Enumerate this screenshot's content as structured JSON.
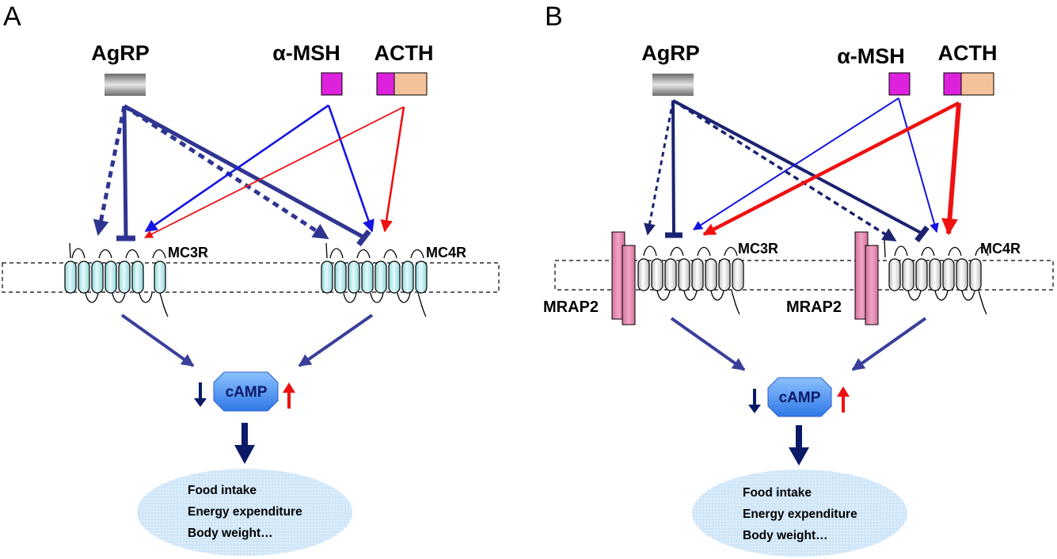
{
  "panels": [
    {
      "label": "A",
      "ligands": {
        "agrp": "AgRP",
        "amsh": "α-MSH",
        "acth": "ACTH"
      },
      "receptors": {
        "mc3r": "MC3R",
        "mc4r": "MC4R"
      },
      "second_messenger": "cAMP",
      "effects": [
        "Food intake",
        "Energy expenditure",
        "Body weight…"
      ]
    },
    {
      "label": "B",
      "ligands": {
        "agrp": "AgRP",
        "amsh": "α-MSH",
        "acth": "ACTH"
      },
      "receptors": {
        "mc3r": "MC3R",
        "mc4r": "MC4R"
      },
      "accessory": {
        "left": "MRAP2",
        "right": "MRAP2"
      },
      "second_messenger": "cAMP",
      "effects": [
        "Food intake",
        "Energy expenditure",
        "Body weight…"
      ]
    }
  ],
  "colors": {
    "agrp": "#2f3590",
    "amsh": "#1414e0",
    "acth": "#ee1111",
    "signal": "#3a3f9a",
    "decrease": "#0b1a66",
    "increase": "#ee1111",
    "mc_helix_a": "#bfeef0",
    "mc_helix_b": "#f2f2f2",
    "mrap2": "#e58fb2",
    "amsh_box": "#dd22dd",
    "acth_box_tail": "#f3c29a",
    "camp": "#4f95f0",
    "effect_bubble": "#cfe6f8"
  }
}
